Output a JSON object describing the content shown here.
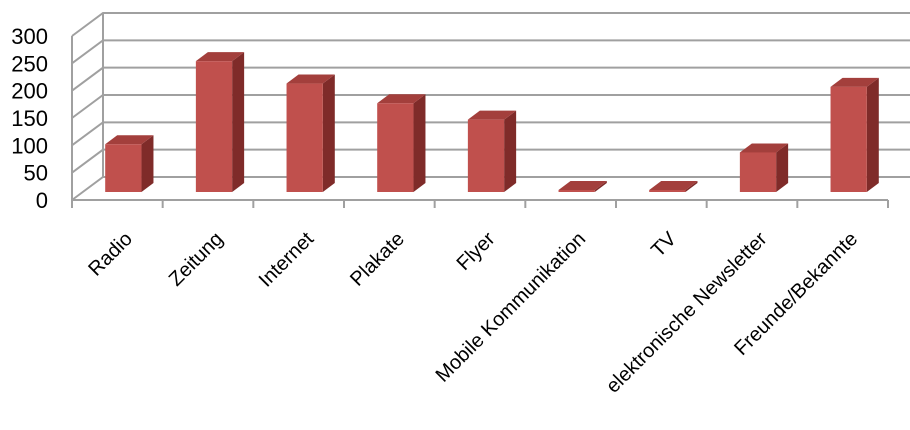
{
  "chart_data": {
    "type": "bar",
    "style": "3d-column",
    "categories": [
      "Radio",
      "Zeitung",
      "Internet",
      "Plakate",
      "Flyer",
      "Mobile Kommunikation",
      "TV",
      "elektronische Newsletter",
      "Freunde/Bekannte"
    ],
    "values": [
      102,
      254,
      213,
      177,
      147,
      8,
      15,
      87,
      207
    ],
    "ylim": [
      0,
      300
    ],
    "yticks": [
      "0",
      "50",
      "100",
      "150",
      "200",
      "250",
      "300"
    ],
    "grid": true,
    "title": "",
    "xlabel": "",
    "ylabel": "",
    "colors": {
      "bar_front": "#c0504d",
      "bar_side": "#7f2b29",
      "bar_top": "#a33f3c",
      "grid": "#a0a0a0"
    }
  }
}
